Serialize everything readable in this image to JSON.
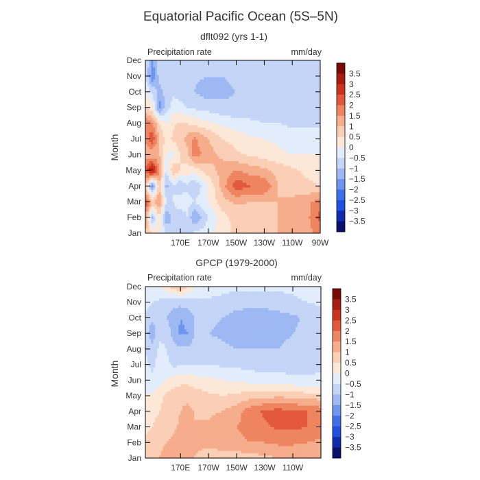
{
  "figure": {
    "title": "Equatorial Pacific Ocean (5S–5N)"
  },
  "palette": [
    "#08126e",
    "#0f2bb0",
    "#1f4fe0",
    "#3f6fe8",
    "#6e95ee",
    "#9db8f3",
    "#c4d5f8",
    "#e2edfc",
    "#fde8d8",
    "#fbcfb6",
    "#f6ad8c",
    "#ee8560",
    "#e2583a",
    "#cc331e",
    "#a81b0e",
    "#7a0a03"
  ],
  "chart_data": [
    {
      "type": "heatmap",
      "title": "dflt092 (yrs 1-1)",
      "field_label": "Precipitation rate",
      "units": "mm/day",
      "ylabel": "Month",
      "y_categories": [
        "Jan",
        "Feb",
        "Mar",
        "Apr",
        "May",
        "Jun",
        "Jul",
        "Aug",
        "Sep",
        "Oct",
        "Nov",
        "Dec"
      ],
      "x_ticks": [
        "170E",
        "170W",
        "150W",
        "130W",
        "110W",
        "90W"
      ],
      "x_tick_lon": [
        170,
        190,
        210,
        230,
        250,
        270
      ],
      "xlim_lon": [
        145,
        270
      ],
      "colorbar_levels": [
        "3.5",
        "3",
        "2.5",
        "2",
        "1.5",
        "1",
        "0.5",
        "0",
        "−0.5",
        "−1",
        "−1.5",
        "−2",
        "−2.5",
        "−3",
        "−3.5"
      ],
      "field": {
        "lon": [
          145,
          150,
          155,
          160,
          165,
          170,
          175,
          180,
          190,
          200,
          210,
          220,
          230,
          240,
          250,
          260,
          270
        ],
        "values": [
          [
            1.0,
            0.5,
            0.0,
            -0.5,
            -0.8,
            -0.5,
            -0.6,
            -0.4,
            -0.2,
            0.3,
            0.6,
            0.8,
            0.9,
            1.0,
            1.1,
            1.3,
            1.7
          ],
          [
            1.5,
            -1.2,
            0.5,
            -1.5,
            -0.8,
            -1.0,
            -0.5,
            -1.5,
            -0.5,
            0.3,
            0.7,
            0.8,
            0.9,
            1.0,
            1.1,
            1.3,
            2.2
          ],
          [
            2.6,
            1.0,
            1.5,
            -0.5,
            -0.5,
            0.0,
            -0.3,
            -0.5,
            0.0,
            0.8,
            1.1,
            1.0,
            1.0,
            1.0,
            1.1,
            1.3,
            1.8
          ],
          [
            1.0,
            -2.0,
            1.0,
            -1.2,
            -0.5,
            -1.0,
            -0.6,
            -1.0,
            0.0,
            1.2,
            2.4,
            2.0,
            2.0,
            1.0,
            0.8,
            0.6,
            0.5
          ],
          [
            2.2,
            3.5,
            1.6,
            -0.5,
            1.0,
            0.5,
            0.3,
            0.2,
            0.8,
            1.2,
            1.5,
            1.3,
            1.1,
            0.8,
            0.6,
            0.4,
            0.3
          ],
          [
            1.2,
            1.0,
            1.0,
            0.0,
            -0.2,
            0.5,
            0.8,
            1.8,
            1.2,
            0.9,
            0.6,
            0.4,
            0.3,
            0.1,
            0.0,
            0.0,
            0.0
          ],
          [
            1.5,
            2.5,
            1.0,
            0.3,
            0.6,
            0.8,
            1.2,
            1.6,
            1.0,
            0.5,
            0.3,
            0.1,
            0.0,
            -0.1,
            -0.3,
            -0.3,
            -0.3
          ],
          [
            2.0,
            1.5,
            0.5,
            0.0,
            0.4,
            0.6,
            0.5,
            0.3,
            0.1,
            -0.1,
            -0.3,
            -0.4,
            -0.5,
            -0.5,
            -0.6,
            -0.6,
            -0.6
          ],
          [
            0.5,
            0.2,
            -1.8,
            -0.8,
            -0.3,
            -0.3,
            -0.5,
            -0.6,
            -0.7,
            -0.9,
            -0.9,
            -0.8,
            -0.8,
            -0.8,
            -0.9,
            -1.0,
            -1.0
          ],
          [
            0.0,
            -0.6,
            -1.2,
            -0.8,
            -0.6,
            -0.8,
            -0.9,
            -1.0,
            -1.3,
            -1.1,
            -1.0,
            -0.9,
            -0.9,
            -0.9,
            -0.9,
            -1.0,
            -1.0
          ],
          [
            -0.5,
            -2.0,
            -0.8,
            -0.8,
            -0.8,
            -0.9,
            -0.9,
            -0.9,
            -1.0,
            -1.0,
            -0.9,
            -0.9,
            -0.9,
            -0.9,
            -0.9,
            -1.0,
            -1.0
          ],
          [
            -0.5,
            -1.5,
            -0.6,
            -0.6,
            -0.8,
            -0.8,
            -0.8,
            -0.8,
            -0.9,
            -0.9,
            -0.9,
            -0.9,
            -0.9,
            -0.9,
            -0.9,
            -1.0,
            -1.0
          ]
        ]
      }
    },
    {
      "type": "heatmap",
      "title": "GPCP (1979-2000)",
      "field_label": "Precipitation rate",
      "units": "mm/day",
      "ylabel": "Month",
      "y_categories": [
        "Jan",
        "Feb",
        "Mar",
        "Apr",
        "May",
        "Jun",
        "Jul",
        "Aug",
        "Sep",
        "Oct",
        "Nov",
        "Dec"
      ],
      "x_ticks": [
        "170E",
        "170W",
        "150W",
        "130W",
        "110W"
      ],
      "x_tick_lon": [
        170,
        190,
        210,
        230,
        250
      ],
      "xlim_lon": [
        145,
        270
      ],
      "colorbar_levels": [
        "3.5",
        "3",
        "2.5",
        "2",
        "1.5",
        "1",
        "0.5",
        "0",
        "−0.5",
        "−1",
        "−1.5",
        "−2",
        "−2.5",
        "−3",
        "−3.5"
      ],
      "field": {
        "lon": [
          145,
          150,
          155,
          160,
          165,
          170,
          175,
          180,
          190,
          200,
          210,
          220,
          230,
          240,
          250,
          260,
          270
        ],
        "values": [
          [
            0.6,
            0.7,
            1.0,
            1.2,
            1.3,
            1.5,
            1.3,
            1.0,
            0.8,
            0.7,
            0.7,
            0.8,
            0.9,
            1.0,
            1.0,
            1.0,
            1.1
          ],
          [
            0.6,
            0.6,
            0.9,
            1.0,
            1.1,
            1.2,
            1.2,
            1.1,
            1.1,
            1.3,
            1.4,
            1.5,
            1.5,
            1.6,
            1.6,
            1.5,
            1.4
          ],
          [
            0.4,
            0.5,
            0.6,
            0.8,
            0.9,
            1.1,
            1.2,
            1.0,
            1.1,
            1.3,
            1.5,
            1.7,
            1.9,
            2.1,
            2.1,
            2.0,
            1.8
          ],
          [
            0.3,
            0.4,
            0.5,
            0.7,
            0.8,
            1.0,
            1.1,
            1.0,
            0.9,
            1.0,
            1.3,
            1.8,
            2.1,
            2.2,
            2.1,
            2.0,
            1.8
          ],
          [
            0.0,
            0.1,
            0.3,
            0.6,
            0.8,
            0.9,
            0.9,
            0.8,
            0.6,
            0.5,
            0.6,
            0.8,
            0.8,
            0.9,
            0.8,
            0.7,
            0.7
          ],
          [
            -0.2,
            -0.4,
            -0.2,
            0.0,
            0.2,
            0.3,
            0.3,
            0.2,
            0.1,
            0.0,
            -0.1,
            -0.2,
            -0.3,
            -0.3,
            -0.4,
            -0.4,
            -0.4
          ],
          [
            -0.4,
            -0.6,
            -0.3,
            -0.4,
            -0.6,
            -0.6,
            -0.6,
            -0.5,
            -0.5,
            -0.6,
            -0.6,
            -0.7,
            -0.7,
            -0.7,
            -0.7,
            -0.7,
            -0.6
          ],
          [
            -0.5,
            -0.8,
            -0.4,
            -0.5,
            -0.8,
            -0.9,
            -0.9,
            -0.8,
            -0.8,
            -0.9,
            -1.0,
            -1.0,
            -1.0,
            -1.0,
            -0.9,
            -0.8,
            -0.7
          ],
          [
            -0.8,
            -1.4,
            -0.6,
            -0.6,
            -1.2,
            -1.6,
            -1.5,
            -1.0,
            -1.0,
            -1.1,
            -1.2,
            -1.2,
            -1.2,
            -1.1,
            -1.0,
            -0.9,
            -0.8
          ],
          [
            -0.6,
            -0.9,
            -0.8,
            -1.0,
            -1.3,
            -1.5,
            -1.4,
            -1.0,
            -0.9,
            -1.0,
            -1.2,
            -1.3,
            -1.3,
            -1.2,
            -1.1,
            -0.9,
            -0.8
          ],
          [
            -0.3,
            -0.5,
            -0.6,
            -0.7,
            -0.8,
            -0.8,
            -0.7,
            -0.6,
            -0.6,
            -0.7,
            -0.8,
            -0.8,
            -0.8,
            -0.7,
            -0.6,
            -0.5,
            -0.4
          ],
          [
            -0.3,
            -0.2,
            0.0,
            0.3,
            0.8,
            1.0,
            0.5,
            0.0,
            -0.2,
            -0.3,
            -0.4,
            -0.4,
            -0.4,
            -0.4,
            -0.4,
            -0.3,
            -0.3
          ]
        ]
      }
    }
  ]
}
